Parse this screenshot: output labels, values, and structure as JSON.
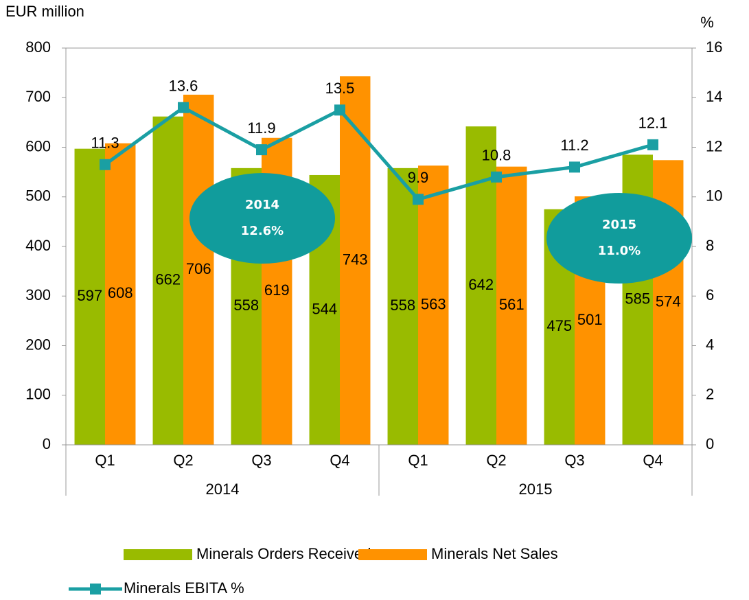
{
  "chart_data": {
    "type": "bar",
    "y_label": "EUR million",
    "y2_label": "%",
    "categories": [
      "Q1",
      "Q2",
      "Q3",
      "Q4",
      "Q1",
      "Q2",
      "Q3",
      "Q4"
    ],
    "groups": [
      "2014",
      "2015"
    ],
    "series": [
      {
        "name": "Minerals Orders Received",
        "color": "#99bb00",
        "values": [
          597,
          662,
          558,
          544,
          558,
          642,
          475,
          585
        ]
      },
      {
        "name": "Minerals Net Sales",
        "color": "#ff9200",
        "values": [
          608,
          706,
          619,
          743,
          563,
          561,
          501,
          574
        ]
      },
      {
        "name": "Minerals EBITA %",
        "color": "#1a9fa3",
        "axis": "y2",
        "type": "line",
        "values": [
          11.3,
          13.6,
          11.9,
          13.5,
          9.9,
          10.8,
          11.2,
          12.1
        ]
      }
    ],
    "annotations": [
      {
        "lines": [
          "2014",
          "12.6%"
        ]
      },
      {
        "lines": [
          "2015",
          "11.0%"
        ]
      }
    ],
    "ylim": [
      0,
      800
    ],
    "yticks": [
      0,
      100,
      200,
      300,
      400,
      500,
      600,
      700,
      800
    ],
    "y2lim": [
      0,
      16
    ],
    "y2ticks": [
      0,
      2,
      4,
      6,
      8,
      10,
      12,
      14,
      16
    ],
    "grid": false
  }
}
